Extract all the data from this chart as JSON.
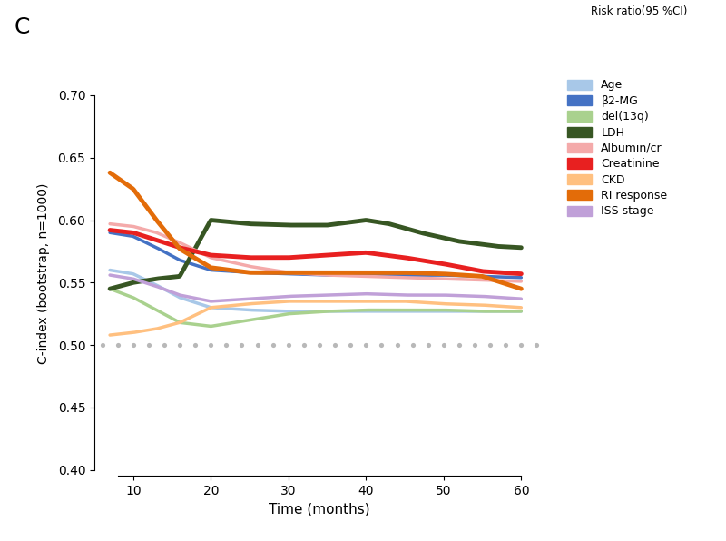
{
  "title_label": "C",
  "xlabel": "Time (months)",
  "ylabel": "C-index (bootstrap, n=1000)",
  "header_text": "Risk ratio(95 %CI)",
  "xlim": [
    5,
    63
  ],
  "ylim": [
    0.395,
    0.72
  ],
  "yticks": [
    0.4,
    0.45,
    0.5,
    0.55,
    0.6,
    0.65,
    0.7
  ],
  "xticks": [
    10,
    20,
    30,
    40,
    50,
    60
  ],
  "reference_line_y": 0.5,
  "reference_x": [
    6,
    8,
    10,
    12,
    14,
    16,
    18,
    20,
    22,
    24,
    26,
    28,
    30,
    32,
    34,
    36,
    38,
    40,
    42,
    44,
    46,
    48,
    50,
    52,
    54,
    56,
    58,
    60,
    62
  ],
  "series": [
    {
      "name": "Age",
      "color": "#a8c8e8",
      "lw": 2.5,
      "x": [
        7,
        10,
        13,
        16,
        20,
        25,
        30,
        35,
        40,
        45,
        50,
        55,
        60
      ],
      "y": [
        0.56,
        0.557,
        0.548,
        0.538,
        0.53,
        0.528,
        0.527,
        0.527,
        0.527,
        0.527,
        0.527,
        0.527,
        0.527
      ]
    },
    {
      "name": "β2-MG",
      "color": "#4472c4",
      "lw": 2.5,
      "x": [
        7,
        10,
        13,
        16,
        20,
        25,
        30,
        35,
        40,
        45,
        50,
        55,
        60
      ],
      "y": [
        0.59,
        0.587,
        0.578,
        0.568,
        0.56,
        0.558,
        0.557,
        0.556,
        0.556,
        0.556,
        0.556,
        0.555,
        0.554
      ]
    },
    {
      "name": "del(13q)",
      "color": "#a9d18e",
      "lw": 2.5,
      "x": [
        7,
        10,
        13,
        16,
        20,
        25,
        30,
        35,
        40,
        45,
        50,
        55,
        60
      ],
      "y": [
        0.545,
        0.538,
        0.528,
        0.518,
        0.515,
        0.52,
        0.525,
        0.527,
        0.528,
        0.528,
        0.528,
        0.527,
        0.527
      ]
    },
    {
      "name": "LDH",
      "color": "#375623",
      "lw": 3.5,
      "x": [
        7,
        10,
        13,
        16,
        20,
        25,
        30,
        35,
        40,
        43,
        47,
        52,
        57,
        60
      ],
      "y": [
        0.545,
        0.55,
        0.553,
        0.555,
        0.6,
        0.597,
        0.596,
        0.596,
        0.6,
        0.597,
        0.59,
        0.583,
        0.579,
        0.578
      ]
    },
    {
      "name": "Albumin/cr",
      "color": "#f4aaaa",
      "lw": 2.5,
      "x": [
        7,
        10,
        13,
        16,
        20,
        25,
        30,
        35,
        40,
        45,
        50,
        55,
        60
      ],
      "y": [
        0.597,
        0.595,
        0.59,
        0.582,
        0.57,
        0.563,
        0.558,
        0.556,
        0.555,
        0.554,
        0.553,
        0.552,
        0.551
      ]
    },
    {
      "name": "Creatinine",
      "color": "#e82020",
      "lw": 3.5,
      "x": [
        7,
        10,
        13,
        16,
        20,
        25,
        30,
        35,
        40,
        45,
        50,
        55,
        60
      ],
      "y": [
        0.592,
        0.59,
        0.584,
        0.578,
        0.572,
        0.57,
        0.57,
        0.572,
        0.574,
        0.57,
        0.565,
        0.559,
        0.557
      ]
    },
    {
      "name": "CKD",
      "color": "#ffc080",
      "lw": 2.5,
      "x": [
        7,
        10,
        13,
        16,
        20,
        25,
        30,
        35,
        40,
        45,
        50,
        55,
        60
      ],
      "y": [
        0.508,
        0.51,
        0.513,
        0.518,
        0.53,
        0.533,
        0.535,
        0.535,
        0.535,
        0.535,
        0.533,
        0.532,
        0.53
      ]
    },
    {
      "name": "RI response",
      "color": "#e36c09",
      "lw": 3.5,
      "x": [
        7,
        10,
        13,
        16,
        20,
        25,
        30,
        35,
        40,
        45,
        50,
        55,
        60
      ],
      "y": [
        0.638,
        0.625,
        0.6,
        0.577,
        0.562,
        0.558,
        0.558,
        0.558,
        0.558,
        0.558,
        0.557,
        0.555,
        0.545
      ]
    },
    {
      "name": "ISS stage",
      "color": "#c0a0d8",
      "lw": 2.5,
      "x": [
        7,
        10,
        13,
        16,
        20,
        25,
        30,
        35,
        40,
        45,
        50,
        55,
        60
      ],
      "y": [
        0.556,
        0.553,
        0.547,
        0.54,
        0.535,
        0.537,
        0.539,
        0.54,
        0.541,
        0.54,
        0.54,
        0.539,
        0.537
      ]
    }
  ]
}
